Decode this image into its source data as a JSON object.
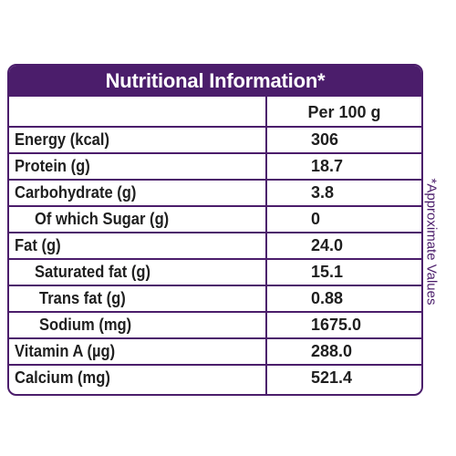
{
  "table": {
    "title": "Nutritional Information*",
    "column_header": "Per 100 g",
    "rows": [
      {
        "label": "Energy (kcal)",
        "value": "306"
      },
      {
        "label": "Protein (g)",
        "value": "18.7"
      },
      {
        "label": "Carbohydrate (g)",
        "value": "3.8"
      },
      {
        "label": "Of which Sugar (g)",
        "value": "0"
      },
      {
        "label": "Fat (g)",
        "value": "24.0"
      },
      {
        "label": "Saturated fat (g)",
        "value": "15.1"
      },
      {
        "label": "Trans fat (g)",
        "value": "0.88"
      },
      {
        "label": "Sodium (mg)",
        "value": "1675.0"
      },
      {
        "label": "Vitamin A (µg)",
        "value": "288.0"
      },
      {
        "label": "Calcium (mg)",
        "value": "521.4"
      }
    ]
  },
  "footnote": "*Approximate Values",
  "colors": {
    "accent": "#4b1d6b",
    "text": "#1f1f1f",
    "background": "#ffffff"
  }
}
